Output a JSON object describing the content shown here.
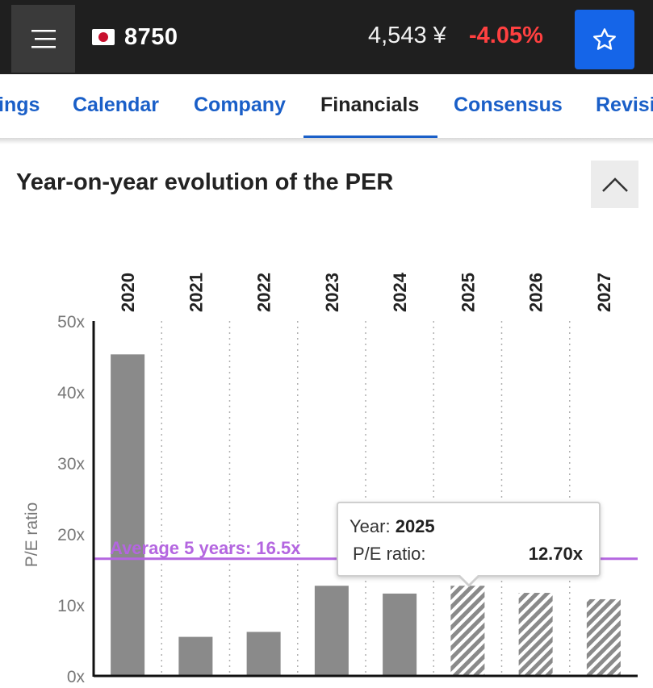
{
  "header": {
    "menu_icon": "hamburger-icon",
    "ticker": "8750",
    "flag": "japan-flag-icon",
    "price": "4,543 ¥",
    "change": "-4.05%",
    "change_color": "#ff4040",
    "star_icon": "star-outline-icon",
    "accent": "#1565e8"
  },
  "tabs": [
    {
      "label": "ings",
      "active": false
    },
    {
      "label": "Calendar",
      "active": false
    },
    {
      "label": "Company",
      "active": false
    },
    {
      "label": "Financials",
      "active": true
    },
    {
      "label": "Consensus",
      "active": false
    },
    {
      "label": "Revisi",
      "active": false
    }
  ],
  "section": {
    "title": "Year-on-year evolution of the PER",
    "collapse_icon": "chevron-up-icon"
  },
  "chart_data": {
    "type": "bar",
    "categories": [
      "2020",
      "2021",
      "2022",
      "2023",
      "2024",
      "2025",
      "2026",
      "2027"
    ],
    "values": [
      45.3,
      5.5,
      6.2,
      12.7,
      11.6,
      12.7,
      11.7,
      10.8
    ],
    "estimated": [
      false,
      false,
      false,
      false,
      false,
      true,
      true,
      true
    ],
    "ylabel": "P/E ratio",
    "ylim": [
      0,
      50
    ],
    "yticks": [
      "0x",
      "10x",
      "20x",
      "30x",
      "40x",
      "50x"
    ],
    "bar_color": "#8a8a8a",
    "average": {
      "label": "Average 5 years: 16.5x",
      "value": 16.5,
      "color": "#b466e0"
    },
    "tooltip": {
      "year_label": "Year:",
      "year": "2025",
      "ratio_label": "P/E ratio:",
      "ratio": "12.70x"
    }
  }
}
